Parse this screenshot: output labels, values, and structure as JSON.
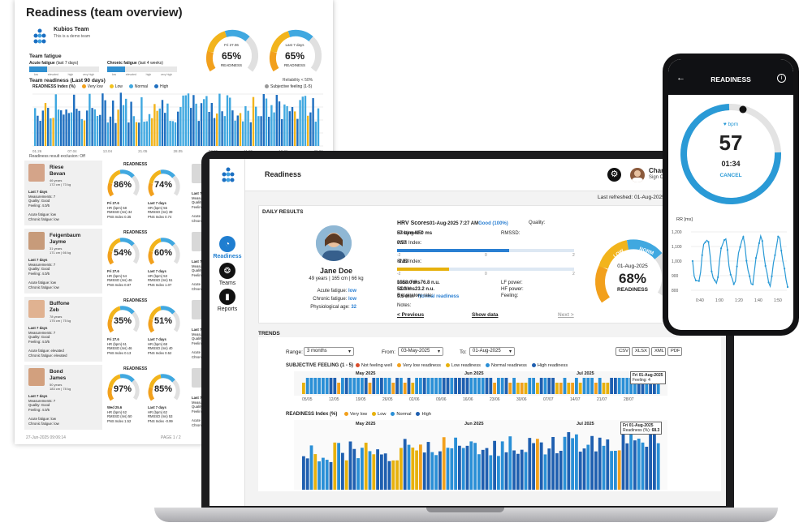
{
  "report": {
    "title": "Readiness (team overview)",
    "team_name": "Kubios Team",
    "team_sub": "This is a demo team",
    "team_fatigue": "Team fatigue",
    "acute_fatigue": "Acute fatigue",
    "acute_range": "(last 7 days)",
    "chronic_fatigue": "Chronic fatigue",
    "chronic_range": "(last 4 weeks)",
    "fatigue_scale": [
      "low",
      "elevated",
      "high",
      "very high"
    ],
    "gauge1": {
      "date": "Fri 27.06",
      "value": "65%",
      "label": "READINESS"
    },
    "gauge2": {
      "date": "Last 7 days",
      "value": "65%",
      "label": "READINESS"
    },
    "gauge_segments": [
      "VERY LOW",
      "LOW",
      "NORM"
    ],
    "team_readiness": "Team readiness (Last 90 days)",
    "chart_index_label": "READINESS Index (%)",
    "legend": [
      "Very low",
      "Low",
      "Normal",
      "High"
    ],
    "subjective": "Subjective feeling (1-5)",
    "reliability": "Reliability < 50%",
    "x_months": [
      "01.26",
      "07.04",
      "13.04",
      "21.05",
      "28.05",
      "04.06",
      "11.06",
      "18.06",
      "25.06"
    ],
    "chart_foot": "Readiness result exclusion: Off",
    "footer_left": "27-Jun-2025 09:06:14",
    "footer_right": "PAGE 1 / 2",
    "readiness_label": "READINESS",
    "people": [
      {
        "name1": "Riese",
        "name2": "Bevan",
        "meta1": "46 years",
        "meta2": "172 cm | 73 kg",
        "stats": [
          "Last 7 days",
          "Measurements: 7",
          "Quality: Good",
          "Feeling: 4.0/5",
          "",
          "Acute fatigue: low",
          "Chronic fatigue: low"
        ],
        "g1": "86%",
        "g2": "74%",
        "m1": [
          "Fri 27.6",
          "HR (bpm) 58",
          "RMSSD (ms) 34",
          "PNS Index 0.35"
        ],
        "m2": [
          "Last 7 days",
          "HR (bpm) 55",
          "RMSSD (ms) 39",
          "PNS Index 0.74"
        ]
      },
      {
        "name1": "Feigenbaum",
        "name2": "Jayme",
        "meta1": "31 years",
        "meta2": "171 cm | 66 kg",
        "stats": [
          "Last 7 days",
          "Measurements: 7",
          "Quality: Good",
          "Feeling: 4.0/5",
          "",
          "Acute fatigue: low",
          "Chronic fatigue: low"
        ],
        "g1": "54%",
        "g2": "60%",
        "m1": [
          "Fri 27.6",
          "HR (bpm) 54",
          "RMSSD (ms) 46",
          "PNS Index 0.87"
        ],
        "m2": [
          "Last 7 days",
          "HR (bpm) 53",
          "RMSSD (ms) 51",
          "PNS Index 1.07"
        ]
      },
      {
        "name1": "Buffone",
        "name2": "Zeb",
        "meta1": "78 years",
        "meta2": "175 cm | 75 kg",
        "stats": [
          "Last 7 days",
          "Measurements: 7",
          "Quality: Good",
          "Feeling: 4.0/5",
          "",
          "Acute fatigue: elevated",
          "Chronic fatigue: elevated"
        ],
        "g1": "35%",
        "g2": "51%",
        "m1": [
          "Fri 27.6",
          "HR (bpm) 61",
          "RMSSD (ms) 46",
          "PNS Index 0.13"
        ],
        "m2": [
          "Last 7 days",
          "HR (bpm) 68",
          "RMSSD (ms) 40",
          "PNS Index 0.52"
        ]
      },
      {
        "name1": "Bond",
        "name2": "James",
        "meta1": "50 years",
        "meta2": "183 cm | 78 kg",
        "stats": [
          "Last 7 days",
          "Measurements: 7",
          "Quality: Good",
          "Feeling: 4.0/5",
          "",
          "Acute fatigue: low",
          "Chronic fatigue: low"
        ],
        "g1": "97%",
        "g2": "85%",
        "m1": [
          "Wed 25.6",
          "HR (bpm) 62",
          "RMSSD (ms) 50",
          "PNS Index 1.52"
        ],
        "m2": [
          "Last 7 days",
          "HR (bpm) 62",
          "RMSSD (ms) 53",
          "PNS Index -0.99"
        ]
      }
    ],
    "right_stats": [
      "Last 7 days",
      "Measurements: 7",
      "Quality: Good",
      "Feeling: 4.0/5",
      "",
      "Acute fatigue: low",
      "Chronic fatigue: low"
    ]
  },
  "app": {
    "page_title": "Readiness",
    "user_name": "Charlotte",
    "user_sub": "Sign Out",
    "last_refreshed": "Last refreshed: 01-Aug-2025",
    "nav": [
      {
        "label": "Readiness",
        "icon": "readiness-icon"
      },
      {
        "label": "Teams",
        "icon": "teams-icon"
      },
      {
        "label": "Reports",
        "icon": "reports-icon"
      }
    ],
    "daily_results": "DAILY RESULTS",
    "person": {
      "name": "Jane Doe",
      "info": "49 years | 165 cm | 66 kg"
    },
    "acute_label": "Acute fatigue:",
    "acute_val": "low",
    "chronic_label": "Chronic fatigue:",
    "chronic_val": "low",
    "phys_label": "Physiological age:",
    "phys_val": "32",
    "hrv": {
      "title": "HRV Scores",
      "date": "01-Aug-2025 7:27 AM",
      "quality_label": "Quality:",
      "quality_val": "Good (100%)",
      "resting_hr_label": "Resting HR:",
      "resting_hr": "57 bpm",
      "rmssd_label": "RMSSD:",
      "rmssd": "42.0 ms",
      "pns_label": "PNS Index:",
      "pns": "0.57",
      "sns_label": "SNS Index:",
      "sns": "-0.83",
      "scale_left": "-2",
      "scale_mid": "0",
      "scale_right": "2",
      "mean_rr_label": "Mean RR:",
      "mean_rr": "1058.0 ms",
      "sdnn_label": "SDNN:",
      "sdnn": "53.0 ms",
      "resp_label": "Respiratory rate:",
      "resp": "9.5 min⁻¹",
      "lf_label": "LF power:",
      "lf": "76.8 n.u.",
      "hf_label": "HF power:",
      "hf": "23.2 n.u.",
      "feeling_label": "Feeling:",
      "feeling": "Normal readiness",
      "notes": "Notes:"
    },
    "prev": "< Previous",
    "show": "Show data",
    "next": "Next >",
    "gauge": {
      "date": "01-Aug-2025",
      "value": "68%",
      "label": "READINESS",
      "segments": [
        "VERY LOW",
        "LOW",
        "NORM"
      ]
    },
    "trends": "TRENDS",
    "range_label": "Range:",
    "range_val": "3 months",
    "from_label": "From:",
    "from_val": "03-May-2025",
    "to_label": "To:",
    "to_val": "01-Aug-2025",
    "exports": [
      "CSV",
      "XLSX",
      "XML",
      "PDF"
    ],
    "subj": {
      "title": "SUBJECTIVE FEELING (1 - 5)",
      "legend": [
        "Not feeling well",
        "Very low readiness",
        "Low readiness",
        "Normal readiness",
        "High readiness"
      ],
      "months": [
        "May 2025",
        "Jun 2025",
        "Jul 2025"
      ],
      "x": [
        "05/05",
        "12/05",
        "19/05",
        "26/05",
        "02/06",
        "09/06",
        "16/06",
        "23/06",
        "30/06",
        "07/07",
        "14/07",
        "21/07",
        "28/07"
      ],
      "tip1": "Fri 01-Aug-2025",
      "tip2": "Feeling: 4"
    },
    "ready": {
      "title": "READINESS Index (%)",
      "legend": [
        "Very low",
        "Low",
        "Normal",
        "High"
      ],
      "months": [
        "May 2025",
        "Jun 2025",
        "Jul 2025"
      ],
      "tip1": "Fri 01-Aug-2025",
      "tip2": "Readiness (%):",
      "tip3": "68.3"
    }
  },
  "phone": {
    "title": "READINESS",
    "bpm": "bpm",
    "hr": "57",
    "timer": "01:34",
    "cancel": "CANCEL",
    "rr_label": "RR [ms]",
    "y_ticks": [
      "1,200",
      "1,100",
      "1,000",
      "900",
      "800"
    ],
    "x_ticks": [
      "0:40",
      "1:00",
      "1:20",
      "1:40",
      "1:50"
    ]
  },
  "colors": {
    "blue": "#1f7ed0",
    "lightblue": "#40a8e0",
    "orange": "#f2a01c",
    "gold": "#e7b10c",
    "red": "#d94b2b",
    "grey": "#bdbdbd"
  }
}
